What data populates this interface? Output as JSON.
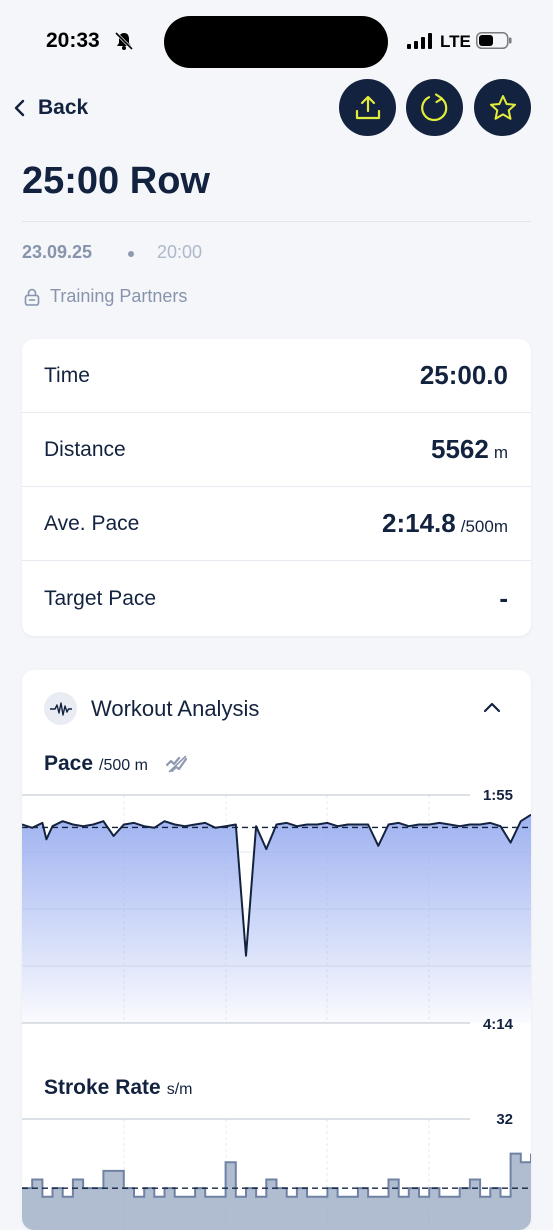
{
  "status_bar": {
    "time": "20:33",
    "network": "LTE",
    "icons": [
      "bell-slash-icon",
      "signal-icon",
      "battery-icon"
    ]
  },
  "nav": {
    "back_label": "Back",
    "actions": [
      "share-icon",
      "refresh-icon",
      "star-icon"
    ]
  },
  "workout": {
    "title": "25:00 Row",
    "date": "23.09.25",
    "time": "20:00",
    "privacy": "Training Partners"
  },
  "stats": [
    {
      "label": "Time",
      "value": "25:00.0",
      "unit": ""
    },
    {
      "label": "Distance",
      "value": "5562",
      "unit": "m"
    },
    {
      "label": "Ave. Pace",
      "value": "2:14.8",
      "unit": "/500m"
    },
    {
      "label": "Target Pace",
      "value": "-",
      "unit": ""
    }
  ],
  "analysis": {
    "title": "Workout Analysis",
    "pace": {
      "title": "Pace",
      "unit": "/500 m",
      "top_label": "1:55",
      "bottom_label": "4:14"
    },
    "stroke_rate": {
      "title": "Stroke Rate",
      "unit": "s/m",
      "top_label": "32"
    }
  },
  "colors": {
    "primary": "#13233f",
    "accent": "#e4ec3b",
    "pace_fill": "#9aaef0",
    "stroke_fill": "#8fa1be"
  },
  "chart_data": [
    {
      "type": "area",
      "title": "Pace",
      "ylabel": "/500 m",
      "ylim": [
        "4:14",
        "1:55"
      ],
      "xlim_minutes": [
        0,
        25
      ],
      "average_line": "2:14.8",
      "series": [
        {
          "x": [
            0,
            0.5,
            1,
            1.2,
            1.5,
            2,
            2.5,
            3,
            3.5,
            4,
            4.5,
            5,
            5.5,
            6,
            6.5,
            7,
            7.5,
            8,
            8.5,
            9,
            9.5,
            10,
            10.5,
            11,
            11.5,
            12,
            12.5,
            13,
            13.5,
            14,
            14.5,
            15,
            15.5,
            16,
            16.5,
            17,
            17.5,
            18,
            18.5,
            19,
            19.5,
            20,
            20.5,
            21,
            21.5,
            22,
            22.5,
            23,
            23.5,
            24,
            24.5,
            25
          ],
          "y": [
            133,
            135,
            132,
            142,
            134,
            131,
            133,
            134,
            133,
            131,
            140,
            133,
            132,
            134,
            135,
            131,
            133,
            134,
            133,
            132,
            135,
            134,
            133,
            213,
            134,
            148,
            133,
            132,
            134,
            133,
            133,
            132,
            134,
            133,
            133,
            133,
            146,
            133,
            132,
            134,
            133,
            133,
            132,
            133,
            134,
            133,
            133,
            132,
            134,
            144,
            131,
            127
          ]
        }
      ]
    },
    {
      "type": "area",
      "title": "Stroke Rate",
      "ylabel": "s/m",
      "ylim": [
        null,
        32
      ],
      "xlim_minutes": [
        0,
        25
      ],
      "series": [
        {
          "x": [
            0,
            0.5,
            1,
            1.5,
            2,
            2.5,
            3,
            3.5,
            4,
            4.5,
            5,
            5.5,
            6,
            6.5,
            7,
            7.5,
            8,
            8.5,
            9,
            9.5,
            10,
            10.5,
            11,
            11.5,
            12,
            12.5,
            13,
            13.5,
            14,
            14.5,
            15,
            15.5,
            16,
            16.5,
            17,
            17.5,
            18,
            18.5,
            19,
            19.5,
            20,
            20.5,
            21,
            21.5,
            22,
            22.5,
            23,
            23.5,
            24,
            24.5,
            25
          ],
          "y": [
            24,
            25,
            23,
            24,
            23,
            25,
            24,
            24,
            26,
            26,
            24,
            23,
            24,
            23,
            24,
            23,
            23,
            24,
            23,
            23,
            27,
            23,
            24,
            23,
            25,
            24,
            23,
            24,
            23,
            23,
            24,
            23,
            23,
            24,
            23,
            23,
            25,
            23,
            24,
            23,
            24,
            23,
            23,
            24,
            25,
            23,
            24,
            23,
            28,
            27,
            28
          ]
        }
      ]
    }
  ]
}
